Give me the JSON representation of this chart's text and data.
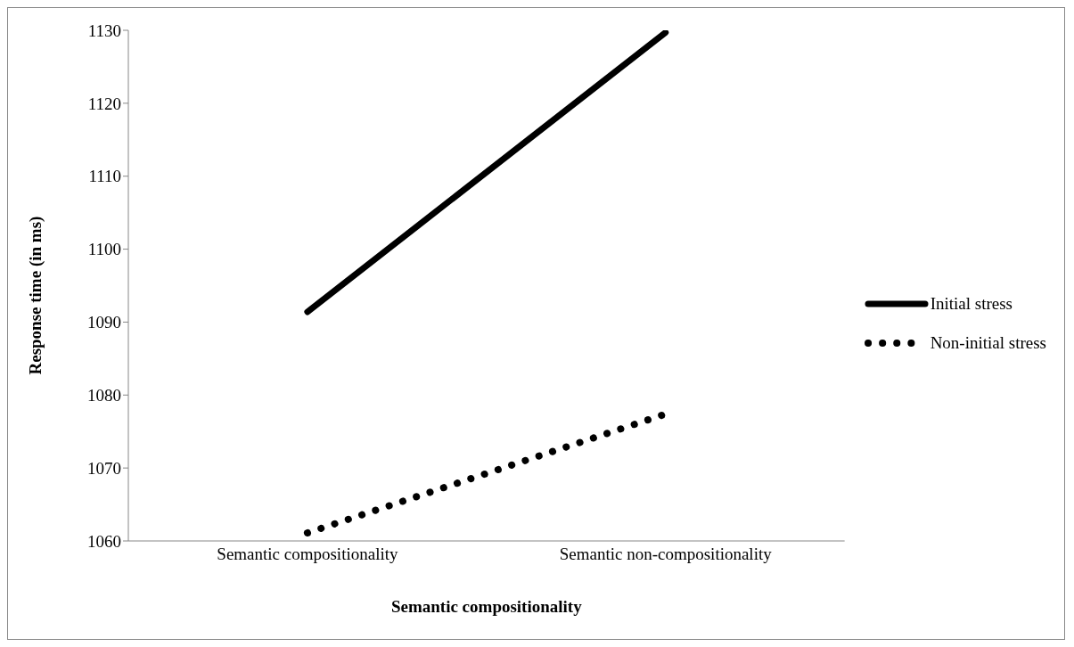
{
  "chart_data": {
    "type": "line",
    "xlabel": "Semantic compositionality",
    "ylabel": "Response time (in ms)",
    "categories": [
      "Semantic compositionality",
      "Semantic non-compositionality"
    ],
    "series": [
      {
        "name": "Initial stress",
        "color": "#000000",
        "values": [
          1091.4,
          1129.7
        ],
        "line_style": "solid"
      },
      {
        "name": "Non-initial stress",
        "color": "#000000",
        "values": [
          1061.1,
          1077.4
        ],
        "line_style": "dotted"
      }
    ],
    "ylim": [
      1060,
      1130
    ],
    "yticks": [
      1060,
      1070,
      1080,
      1090,
      1100,
      1110,
      1120,
      1130
    ],
    "grid": false,
    "legend": "right",
    "marker": "none"
  }
}
